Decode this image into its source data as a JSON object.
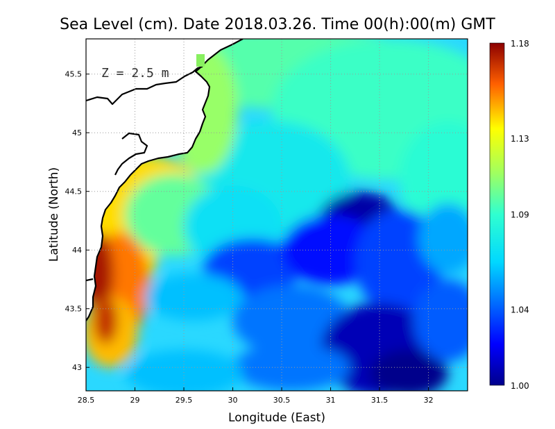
{
  "chart_data": {
    "type": "heatmap",
    "title": "Sea Level (cm). Date 2018.03.26. Time 00(h):00(m) GMT",
    "xlabel": "Longitude (East)",
    "ylabel": "Latitude (North)",
    "xlim": [
      28.5,
      32.4
    ],
    "ylim": [
      42.8,
      45.8
    ],
    "x_ticks": [
      "28.5",
      "29",
      "29.5",
      "30",
      "30.5",
      "31",
      "31.5",
      "32"
    ],
    "y_ticks": [
      "43",
      "43.5",
      "44",
      "44.5",
      "45",
      "45.5"
    ],
    "grid": true,
    "annotation": "Z = 2.5 m",
    "colorbar": {
      "ticks": [
        "1.00",
        "1.04",
        "1.09",
        "1.13",
        "1.18"
      ],
      "min": 1.0,
      "max": 1.18,
      "colormap": "jet"
    },
    "features": [
      {
        "name": "coastal maximum along western shelf",
        "lon": 28.6,
        "lat": 43.8,
        "value": 1.18
      },
      {
        "name": "nearshore high off 29.3E 44.6N",
        "lon": 29.3,
        "lat": 44.6,
        "value": 1.15
      },
      {
        "name": "northern shelf",
        "lon": 30.5,
        "lat": 45.5,
        "value": 1.1
      },
      {
        "name": "central depression",
        "lon": 31.3,
        "lat": 44.2,
        "value": 1.0
      },
      {
        "name": "southern depression",
        "lon": 31.6,
        "lat": 43.0,
        "value": 1.0
      },
      {
        "name": "western low",
        "lon": 30.2,
        "lat": 43.8,
        "value": 1.03
      }
    ]
  }
}
